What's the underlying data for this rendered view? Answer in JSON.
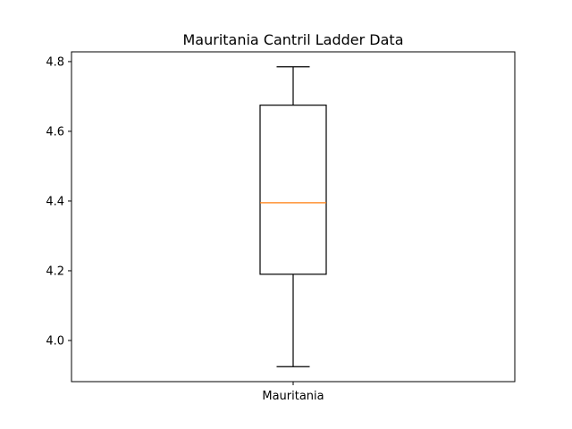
{
  "chart_data": {
    "type": "box",
    "title": "Mauritania Cantril Ladder Data",
    "xlabel": "",
    "ylabel": "",
    "categories": [
      "Mauritania"
    ],
    "boxes": [
      {
        "name": "Mauritania",
        "whisker_low": 3.925,
        "q1": 4.19,
        "median": 4.395,
        "q3": 4.675,
        "whisker_high": 4.785
      }
    ],
    "y_ticks": [
      4.0,
      4.2,
      4.4,
      4.6,
      4.8
    ],
    "y_tick_labels": [
      "4.0",
      "4.2",
      "4.4",
      "4.6",
      "4.8"
    ],
    "ylim": [
      3.882,
      4.828
    ],
    "grid": false,
    "colors": {
      "box": "#000000",
      "median": "#ff7f0e",
      "axes": "#000000",
      "background": "#ffffff"
    }
  }
}
